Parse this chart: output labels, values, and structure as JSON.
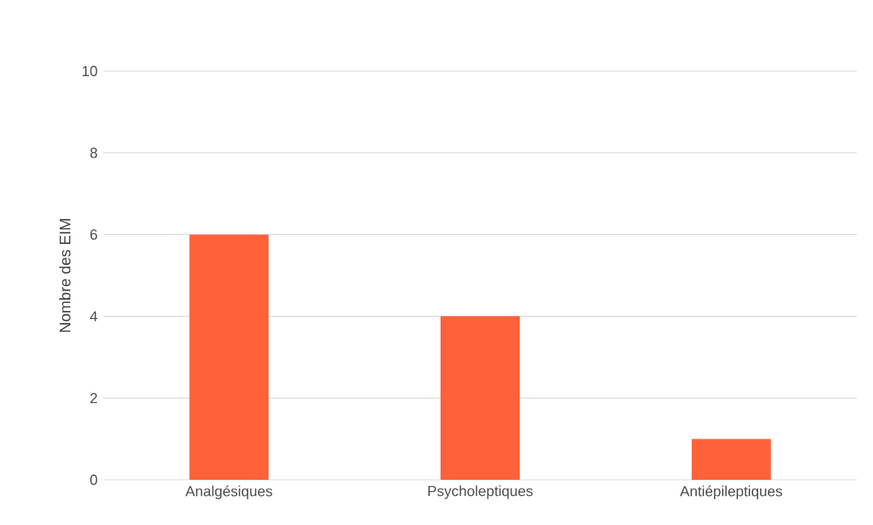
{
  "chart_data": {
    "type": "bar",
    "ylabel": "Nombre des EIM",
    "categories": [
      "Analgésiques",
      "Psycholeptiques",
      "Antiépileptiques"
    ],
    "values": [
      6,
      4,
      1
    ],
    "color": "#ff6138",
    "ylim": [
      0,
      10
    ],
    "yticks": [
      0,
      2,
      4,
      6,
      8,
      10
    ],
    "grid": "y"
  }
}
